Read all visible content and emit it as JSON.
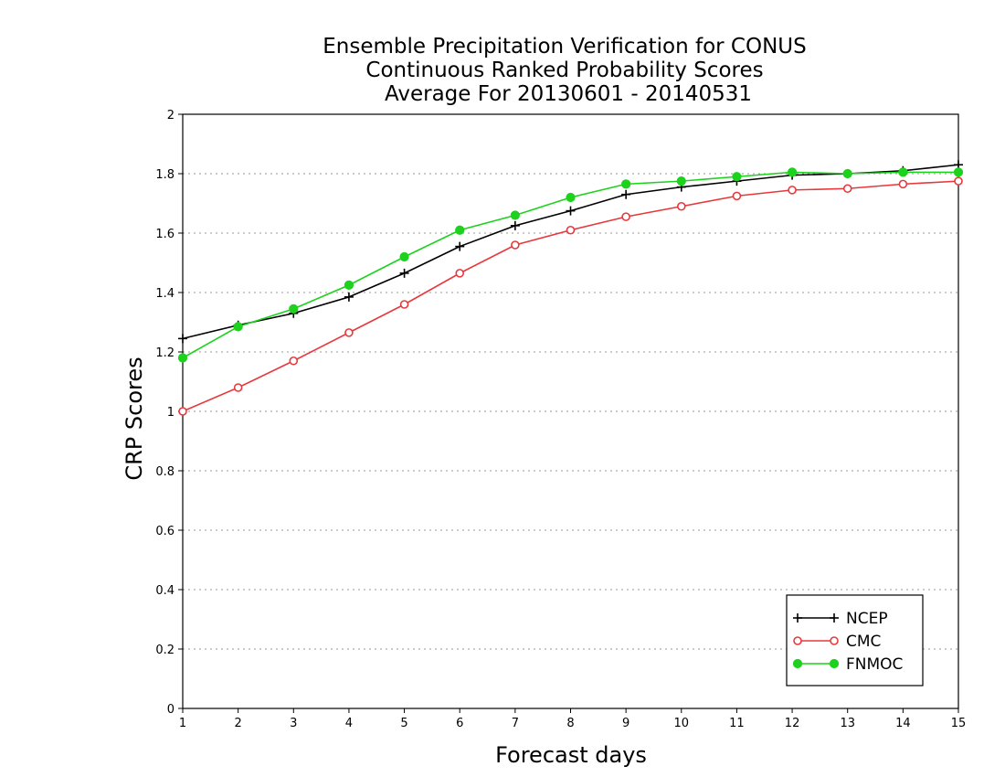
{
  "chart_data": {
    "type": "line",
    "title_lines": [
      "Ensemble Precipitation Verification for CONUS",
      "Continuous Ranked Probability Scores",
      "Average For 20130601 - 20140531"
    ],
    "xlabel": "Forecast days",
    "ylabel": "CRP Scores",
    "x": [
      1,
      2,
      3,
      4,
      5,
      6,
      7,
      8,
      9,
      10,
      11,
      12,
      13,
      14,
      15
    ],
    "x_tick_labels": [
      "1",
      "2",
      "3",
      "4",
      "5",
      "6",
      "7",
      "8",
      "9",
      "10",
      "11",
      "12",
      "13",
      "14",
      "15"
    ],
    "y_tick_labels": [
      "0",
      "0.2",
      "0.4",
      "0.6",
      "0.8",
      "1",
      "1.2",
      "1.4",
      "1.6",
      "1.8",
      "2"
    ],
    "xlim": [
      1,
      15
    ],
    "ylim": [
      0,
      2
    ],
    "grid": "horizontal-dotted",
    "legend_position": "bottom-right",
    "series": [
      {
        "name": "NCEP",
        "color": "#000000",
        "marker": "plus",
        "values": [
          1.245,
          1.29,
          1.33,
          1.385,
          1.465,
          1.555,
          1.625,
          1.675,
          1.73,
          1.755,
          1.775,
          1.795,
          1.8,
          1.81,
          1.83
        ]
      },
      {
        "name": "CMC",
        "color": "#e8383b",
        "marker": "open-circle",
        "values": [
          1.0,
          1.08,
          1.17,
          1.265,
          1.36,
          1.465,
          1.56,
          1.61,
          1.655,
          1.69,
          1.725,
          1.745,
          1.75,
          1.765,
          1.775
        ]
      },
      {
        "name": "FNMOC",
        "color": "#1cd21c",
        "marker": "filled-circle",
        "values": [
          1.18,
          1.285,
          1.345,
          1.425,
          1.52,
          1.61,
          1.66,
          1.72,
          1.765,
          1.775,
          1.79,
          1.805,
          1.8,
          1.805,
          1.805
        ]
      }
    ]
  }
}
